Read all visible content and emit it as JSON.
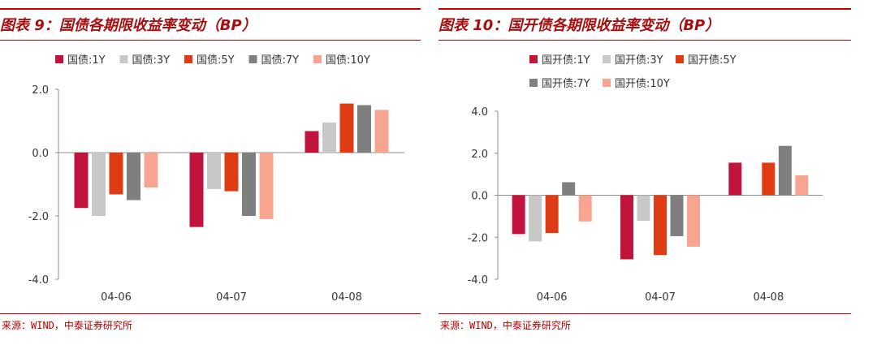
{
  "panels": [
    {
      "title": "图表 9：国债各期限收益率变动（BP）",
      "source": "来源：WIND，中泰证券研究所"
    },
    {
      "title": "图表 10：国开债各期限收益率变动（BP）",
      "source": "来源：WIND，中泰证券研究所"
    }
  ],
  "chart_data": [
    {
      "type": "bar",
      "title": "图表 9：国债各期限收益率变动（BP）",
      "categories": [
        "04-06",
        "04-07",
        "04-08"
      ],
      "ylim": [
        -4.0,
        2.0
      ],
      "yticks": [
        "2.0",
        "0.0",
        "-2.0",
        "-4.0"
      ],
      "grid": false,
      "legend_position": "top",
      "series": [
        {
          "name": "国债:1Y",
          "color": "#c0143c",
          "values": [
            -1.75,
            -2.35,
            0.68
          ]
        },
        {
          "name": "国债:3Y",
          "color": "#c8c8c8",
          "values": [
            -2.0,
            -1.15,
            0.95
          ]
        },
        {
          "name": "国债:5Y",
          "color": "#e03c14",
          "values": [
            -1.32,
            -1.22,
            1.55
          ]
        },
        {
          "name": "国债:7Y",
          "color": "#7f7f7f",
          "values": [
            -1.5,
            -2.0,
            1.5
          ]
        },
        {
          "name": "国债:10Y",
          "color": "#f7a591",
          "values": [
            -1.1,
            -2.1,
            1.35
          ]
        }
      ]
    },
    {
      "type": "bar",
      "title": "图表 10：国开债各期限收益率变动（BP）",
      "categories": [
        "04-06",
        "04-07",
        "04-08"
      ],
      "ylim": [
        -4.0,
        4.0
      ],
      "yticks": [
        "4.0",
        "2.0",
        "0.0",
        "-2.0",
        "-4.0"
      ],
      "grid": false,
      "legend_position": "top",
      "series": [
        {
          "name": "国开债:1Y",
          "color": "#c0143c",
          "values": [
            -1.85,
            -3.05,
            1.55
          ]
        },
        {
          "name": "国开债:3Y",
          "color": "#c8c8c8",
          "values": [
            -2.2,
            -1.22,
            0
          ]
        },
        {
          "name": "国开债:5Y",
          "color": "#e03c14",
          "values": [
            -1.8,
            -2.85,
            1.55
          ]
        },
        {
          "name": "国开债:7Y",
          "color": "#7f7f7f",
          "values": [
            0.62,
            -1.95,
            2.35
          ]
        },
        {
          "name": "国开债:10Y",
          "color": "#f7a591",
          "values": [
            -1.25,
            -2.45,
            0.95
          ]
        }
      ]
    }
  ]
}
